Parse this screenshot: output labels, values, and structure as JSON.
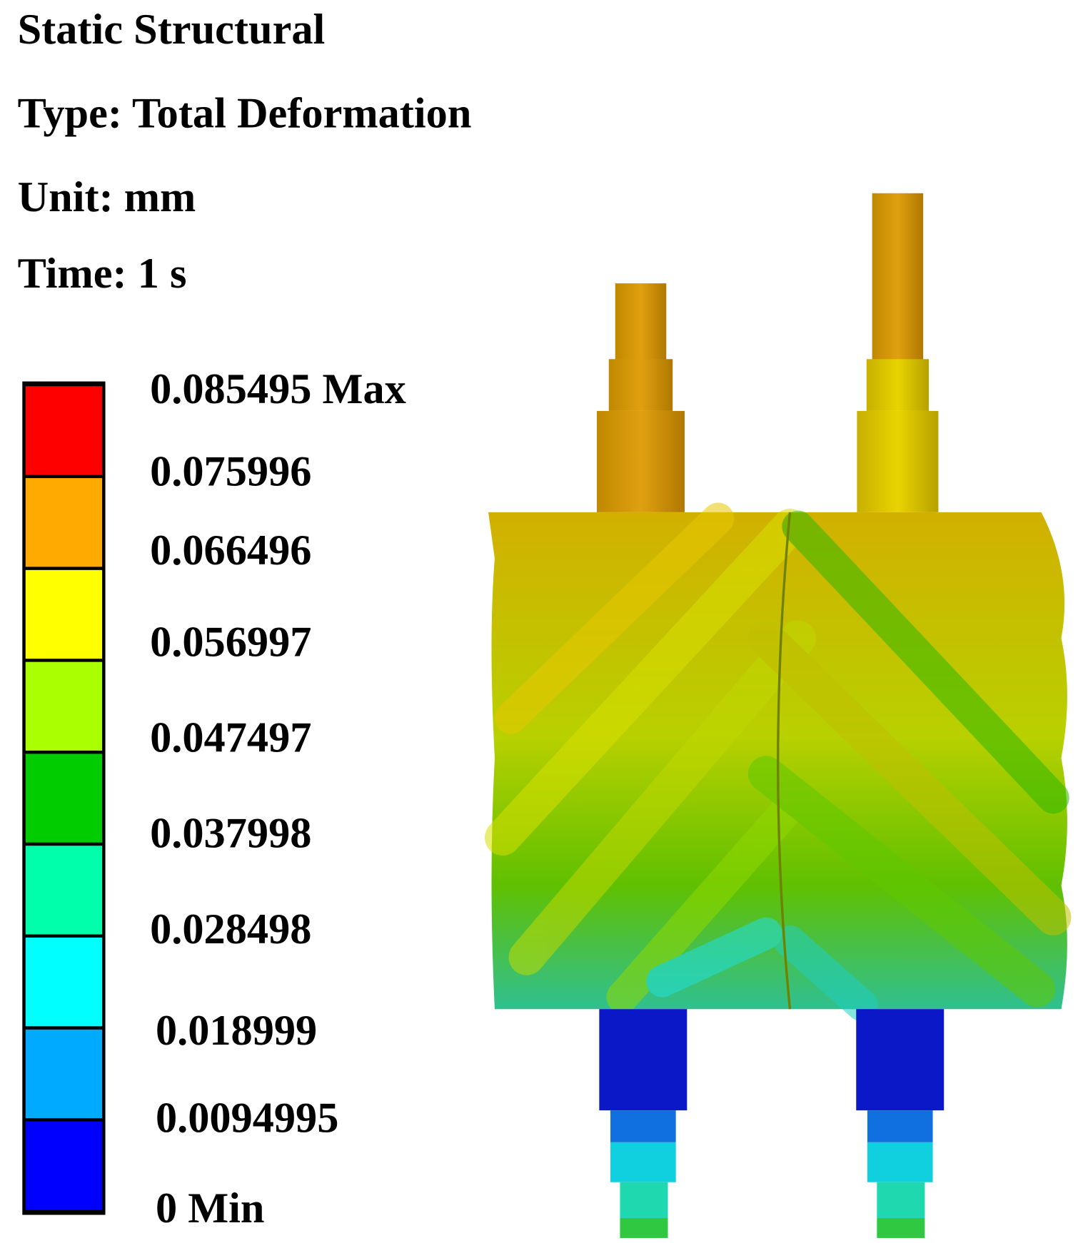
{
  "header": {
    "lines": [
      "Static Structural",
      "Type: Total Deformation",
      "Unit: mm",
      "Time: 1 s"
    ]
  },
  "legend": {
    "labels": [
      "0.085495 Max",
      "0.075996",
      "0.066496",
      "0.056997",
      "0.047497",
      "0.037998",
      "0.028498",
      "0.018999",
      "0.0094995",
      "0 Min"
    ],
    "colors": [
      "#ff0000",
      "#ffaa00",
      "#ffff00",
      "#aaff00",
      "#00cc00",
      "#00ffaa",
      "#00ffff",
      "#00aaff",
      "#0000ff"
    ]
  }
}
